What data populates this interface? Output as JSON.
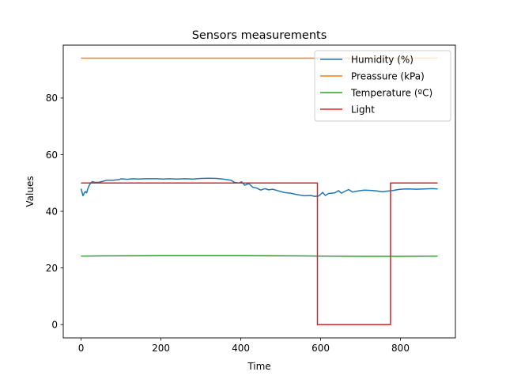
{
  "chart_data": {
    "type": "line",
    "title": "Sensors measurements",
    "xlabel": "Time",
    "ylabel": "Values",
    "xlim": [
      -44.6,
      937.6
    ],
    "ylim": [
      -4.7,
      98.7
    ],
    "xticks": [
      0,
      200,
      400,
      600,
      800
    ],
    "yticks": [
      0,
      20,
      40,
      60,
      80
    ],
    "grid": false,
    "legend_position": "top-right",
    "series": [
      {
        "name": "Humidity (%)",
        "color": "#1f77b4",
        "points": [
          [
            0,
            48
          ],
          [
            2,
            47
          ],
          [
            5,
            45.5
          ],
          [
            8,
            46.5
          ],
          [
            11,
            47
          ],
          [
            14,
            46.5
          ],
          [
            17,
            48
          ],
          [
            20,
            49
          ],
          [
            24,
            50
          ],
          [
            28,
            50.5
          ],
          [
            35,
            50.2
          ],
          [
            45,
            50.3
          ],
          [
            55,
            50.6
          ],
          [
            65,
            51
          ],
          [
            80,
            51
          ],
          [
            95,
            51.2
          ],
          [
            100,
            51.5
          ],
          [
            115,
            51.3
          ],
          [
            130,
            51.5
          ],
          [
            145,
            51.4
          ],
          [
            160,
            51.5
          ],
          [
            175,
            51.5
          ],
          [
            190,
            51.5
          ],
          [
            205,
            51.4
          ],
          [
            220,
            51.5
          ],
          [
            240,
            51.4
          ],
          [
            260,
            51.5
          ],
          [
            280,
            51.4
          ],
          [
            300,
            51.6
          ],
          [
            320,
            51.7
          ],
          [
            340,
            51.6
          ],
          [
            355,
            51.4
          ],
          [
            375,
            51
          ],
          [
            385,
            50.2
          ],
          [
            395,
            50
          ],
          [
            402,
            50.4
          ],
          [
            410,
            49.2
          ],
          [
            420,
            49.8
          ],
          [
            430,
            48.5
          ],
          [
            440,
            48.2
          ],
          [
            450,
            47.5
          ],
          [
            460,
            48
          ],
          [
            470,
            47.6
          ],
          [
            480,
            47.8
          ],
          [
            495,
            47.2
          ],
          [
            510,
            46.6
          ],
          [
            525,
            46.4
          ],
          [
            540,
            45.9
          ],
          [
            560,
            45.5
          ],
          [
            575,
            45.6
          ],
          [
            585,
            45.3
          ],
          [
            595,
            45.4
          ],
          [
            600,
            46
          ],
          [
            605,
            46.7
          ],
          [
            612,
            45.6
          ],
          [
            620,
            46.3
          ],
          [
            635,
            46.5
          ],
          [
            645,
            47.3
          ],
          [
            652,
            46.4
          ],
          [
            660,
            47
          ],
          [
            670,
            47.7
          ],
          [
            680,
            46.8
          ],
          [
            690,
            47.1
          ],
          [
            700,
            47.3
          ],
          [
            710,
            47.5
          ],
          [
            725,
            47.4
          ],
          [
            740,
            47.2
          ],
          [
            755,
            46.9
          ],
          [
            765,
            47.1
          ],
          [
            780,
            47.3
          ],
          [
            790,
            47.6
          ],
          [
            800,
            47.8
          ],
          [
            820,
            47.9
          ],
          [
            840,
            47.8
          ],
          [
            860,
            47.9
          ],
          [
            880,
            48
          ],
          [
            893,
            47.9
          ]
        ]
      },
      {
        "name": "Preassure (kPa)",
        "color": "#ff7f0e",
        "points": [
          [
            0,
            94.1
          ],
          [
            893,
            94.1
          ]
        ]
      },
      {
        "name": "Temperature (ºC)",
        "color": "#2ca02c",
        "points": [
          [
            0,
            24.2
          ],
          [
            100,
            24.3
          ],
          [
            200,
            24.4
          ],
          [
            300,
            24.4
          ],
          [
            400,
            24.4
          ],
          [
            500,
            24.3
          ],
          [
            600,
            24.2
          ],
          [
            700,
            24.1
          ],
          [
            800,
            24.1
          ],
          [
            893,
            24.2
          ]
        ]
      },
      {
        "name": "Light",
        "color": "#d62728",
        "points": [
          [
            0,
            50
          ],
          [
            592,
            50
          ],
          [
            592,
            0
          ],
          [
            775,
            0
          ],
          [
            775,
            50
          ],
          [
            893,
            50
          ]
        ]
      }
    ]
  }
}
